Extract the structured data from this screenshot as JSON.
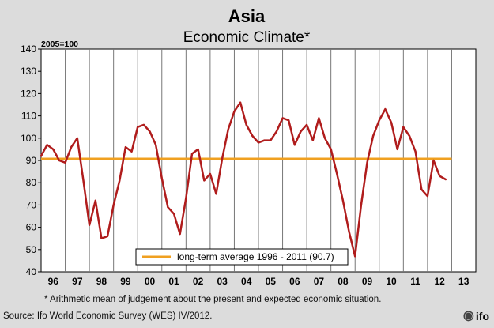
{
  "header": {
    "title": "Asia",
    "subtitle": "Economic Climate*"
  },
  "footnote": "* Arithmetic mean of judgement about the present and expected economic situation.",
  "source": "Source: Ifo World Economic Survey (WES) IV/2012.",
  "logo": {
    "text": "ifo",
    "icon": "ifo-logo-icon"
  },
  "colors": {
    "series": "#b01c1c",
    "average": "#f0a020",
    "grid": "#777777",
    "background": "#dcdcdc",
    "plot_background": "#ffffff"
  },
  "chart_data": {
    "type": "line",
    "y_unit_label": "2005=100",
    "ylim": [
      40,
      140
    ],
    "y_ticks": [
      40,
      50,
      60,
      70,
      80,
      90,
      100,
      110,
      120,
      130,
      140
    ],
    "x_range": [
      1995.5,
      2013.5
    ],
    "x_tick_labels": [
      "96",
      "97",
      "98",
      "99",
      "00",
      "01",
      "02",
      "03",
      "04",
      "05",
      "06",
      "07",
      "08",
      "09",
      "10",
      "11",
      "12",
      "13"
    ],
    "x_tick_centers": [
      1996,
      1997,
      1998,
      1999,
      2000,
      2001,
      2002,
      2003,
      2004,
      2005,
      2006,
      2007,
      2008,
      2009,
      2010,
      2011,
      2012,
      2013
    ],
    "year_separators": [
      1996.5,
      1997.5,
      1998.5,
      1999.5,
      2000.5,
      2001.5,
      2002.5,
      2003.5,
      2004.5,
      2005.5,
      2006.5,
      2007.5,
      2008.5,
      2009.5,
      2010.5,
      2011.5,
      2012.5
    ],
    "grid": "vertical year separators",
    "legend_position": "bottom-left inside plot",
    "series": [
      {
        "name": "",
        "color": "#b01c1c",
        "x": [
          1995.5,
          1995.75,
          1996.0,
          1996.25,
          1996.5,
          1996.75,
          1997.0,
          1997.25,
          1997.5,
          1997.75,
          1998.0,
          1998.25,
          1998.5,
          1998.75,
          1999.0,
          1999.25,
          1999.5,
          1999.75,
          2000.0,
          2000.25,
          2000.5,
          2000.75,
          2001.0,
          2001.25,
          2001.5,
          2001.75,
          2002.0,
          2002.25,
          2002.5,
          2002.75,
          2003.0,
          2003.25,
          2003.5,
          2003.75,
          2004.0,
          2004.25,
          2004.5,
          2004.75,
          2005.0,
          2005.25,
          2005.5,
          2005.75,
          2006.0,
          2006.25,
          2006.5,
          2006.75,
          2007.0,
          2007.25,
          2007.5,
          2007.75,
          2008.0,
          2008.25,
          2008.5,
          2008.75,
          2009.0,
          2009.25,
          2009.5,
          2009.75,
          2010.0,
          2010.25,
          2010.5,
          2010.75,
          2011.0,
          2011.25,
          2011.5,
          2011.75,
          2012.0,
          2012.25,
          2012.5
        ],
        "values": [
          92,
          97,
          95,
          90,
          89,
          96,
          100,
          81,
          61,
          72,
          55,
          56,
          70,
          81,
          96,
          94,
          105,
          106,
          103,
          97,
          82,
          69,
          66,
          57,
          73,
          93,
          95,
          81,
          84,
          75,
          91,
          104,
          112,
          116,
          106,
          101,
          98,
          99,
          99,
          103,
          109,
          108,
          97,
          103,
          106,
          99,
          109,
          100,
          95,
          84,
          72,
          58,
          47,
          70,
          89,
          101,
          108,
          113,
          107,
          95,
          105,
          101,
          94,
          77,
          74,
          90,
          83,
          81.5,
          null
        ]
      },
      {
        "name": "long-term average 1996 - 2011 (90.7)",
        "color": "#f0a020",
        "x": [
          1995.5,
          2012.5
        ],
        "values": [
          90.7,
          90.7
        ]
      }
    ]
  }
}
